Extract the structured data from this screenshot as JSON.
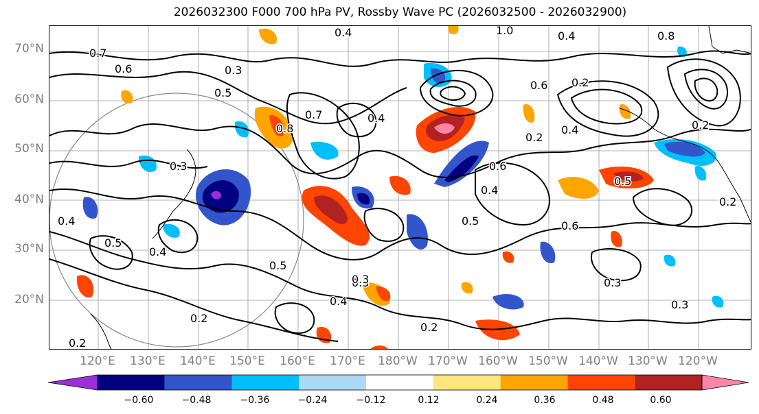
{
  "title": "2026032300 F000 700 hPa PV, Rossby Wave PC (2026032500 - 2026032900)",
  "lat_labels": [
    "70°N",
    "60°N",
    "50°N",
    "40°N",
    "30°N",
    "20°N"
  ],
  "lon_labels": [
    "120°E",
    "130°E",
    "140°E",
    "150°E",
    "160°E",
    "170°E",
    "180°W",
    "170°W",
    "160°W",
    "150°W",
    "140°W",
    "130°W",
    "120°W"
  ],
  "colorbar": {
    "colors": [
      "#9b30d9",
      "#000080",
      "#3355cc",
      "#00bfff",
      "#add8f5",
      "#ffffff",
      "#fce77d",
      "#ffa500",
      "#ff4500",
      "#b22222",
      "#ff85a8"
    ],
    "ticks": [
      "−0.60",
      "−0.48",
      "−0.36",
      "−0.24",
      "−0.12",
      "0.12",
      "0.24",
      "0.36",
      "0.48",
      "0.60"
    ]
  },
  "contour_labels": [
    "0.7",
    "0.6",
    "0.3",
    "0.5",
    "0.4",
    "0.8",
    "1.0",
    "0.4",
    "0.6",
    "0.3",
    "0.5",
    "0.4",
    "0.4",
    "0.5",
    "0.4",
    "0.2",
    "0.2",
    "0.2",
    "0.3",
    "0.4",
    "0.6",
    "0.2",
    "0.5",
    "0.2",
    "0.4",
    "0.5",
    "0.3",
    "0.3",
    "0.2",
    "0.6",
    "0.8",
    "0.2",
    "0.3",
    "0.4",
    "0.7"
  ]
}
